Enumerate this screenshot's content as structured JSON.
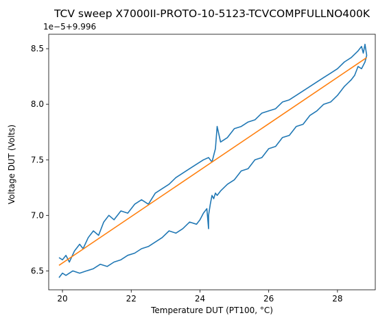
{
  "chart_data": {
    "type": "line",
    "title": "TCV sweep X7000II-PROTO-10-5123-TCVCOMPFULLNO400K",
    "offset_text": "1e−5+9.996",
    "xlabel": "Temperature DUT (PT100, °C)",
    "ylabel": "Voltage DUT (Volts)",
    "xlim": [
      19.6,
      29.1
    ],
    "ylim": [
      6.33,
      8.63
    ],
    "x_ticks": [
      20,
      22,
      24,
      26,
      28
    ],
    "x_tick_labels": [
      "20",
      "22",
      "24",
      "26",
      "28"
    ],
    "y_ticks": [
      6.5,
      7.0,
      7.5,
      8.0,
      8.5
    ],
    "y_tick_labels": [
      "6.5",
      "7.0",
      "7.5",
      "8.0",
      "8.5"
    ],
    "grid": false,
    "series": [
      {
        "color": "#1f77b4",
        "x": [
          19.9,
          20.0,
          20.1,
          20.2,
          20.35,
          20.5,
          20.6,
          20.75,
          20.9,
          21.05,
          21.2,
          21.35,
          21.5,
          21.7,
          21.9,
          22.1,
          22.3,
          22.5,
          22.7,
          22.9,
          23.1,
          23.3,
          23.5,
          23.7,
          23.9,
          24.1,
          24.25,
          24.35,
          24.45,
          24.5,
          24.6,
          24.8,
          25.0,
          25.2,
          25.4,
          25.6,
          25.8,
          26.0,
          26.2,
          26.4,
          26.6,
          26.8,
          27.0,
          27.2,
          27.4,
          27.6,
          27.8,
          28.0,
          28.2,
          28.4,
          28.6,
          28.7,
          28.75,
          28.8,
          28.85,
          28.8,
          28.7,
          28.6,
          28.5,
          28.4,
          28.2,
          28.0,
          27.8,
          27.6,
          27.4,
          27.2,
          27.0,
          26.8,
          26.6,
          26.4,
          26.2,
          26.0,
          25.8,
          25.6,
          25.4,
          25.2,
          25.0,
          24.8,
          24.6,
          24.5,
          24.45,
          24.4,
          24.35,
          24.3,
          24.25,
          24.25,
          24.2,
          24.1,
          24.0,
          23.9,
          23.7,
          23.5,
          23.3,
          23.1,
          22.9,
          22.7,
          22.5,
          22.3,
          22.1,
          21.9,
          21.7,
          21.5,
          21.3,
          21.1,
          20.9,
          20.7,
          20.5,
          20.3,
          20.1,
          20.0,
          19.9
        ],
        "y": [
          6.62,
          6.6,
          6.64,
          6.58,
          6.68,
          6.74,
          6.7,
          6.8,
          6.86,
          6.82,
          6.94,
          7.0,
          6.96,
          7.04,
          7.02,
          7.1,
          7.14,
          7.1,
          7.2,
          7.24,
          7.28,
          7.34,
          7.38,
          7.42,
          7.46,
          7.5,
          7.52,
          7.48,
          7.6,
          7.8,
          7.66,
          7.7,
          7.78,
          7.8,
          7.84,
          7.86,
          7.92,
          7.94,
          7.96,
          8.02,
          8.04,
          8.08,
          8.12,
          8.16,
          8.2,
          8.24,
          8.28,
          8.32,
          8.38,
          8.42,
          8.48,
          8.52,
          8.46,
          8.54,
          8.44,
          8.38,
          8.32,
          8.34,
          8.26,
          8.22,
          8.16,
          8.08,
          8.02,
          8.0,
          7.94,
          7.9,
          7.82,
          7.8,
          7.72,
          7.7,
          7.62,
          7.6,
          7.52,
          7.5,
          7.42,
          7.4,
          7.32,
          7.28,
          7.22,
          7.18,
          7.2,
          7.15,
          7.18,
          7.1,
          7.0,
          6.88,
          7.06,
          7.02,
          6.96,
          6.92,
          6.94,
          6.88,
          6.84,
          6.86,
          6.8,
          6.76,
          6.72,
          6.7,
          6.66,
          6.64,
          6.6,
          6.58,
          6.54,
          6.56,
          6.52,
          6.5,
          6.48,
          6.5,
          6.46,
          6.48,
          6.44
        ]
      },
      {
        "color": "#ff7f0e",
        "x": [
          19.9,
          28.85
        ],
        "y": [
          6.55,
          8.42
        ]
      }
    ]
  }
}
